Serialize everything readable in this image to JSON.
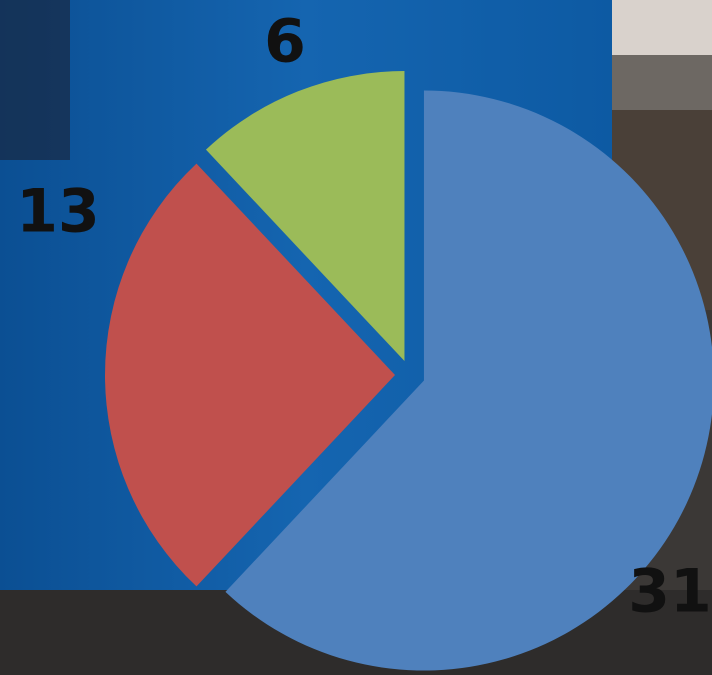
{
  "chart_data": {
    "type": "pie",
    "values": [
      31,
      13,
      6
    ],
    "colors": [
      "#4f81bd",
      "#c0504d",
      "#9bbb59"
    ],
    "start_angle": 0,
    "direction": "clockwise",
    "exploded": true
  }
}
